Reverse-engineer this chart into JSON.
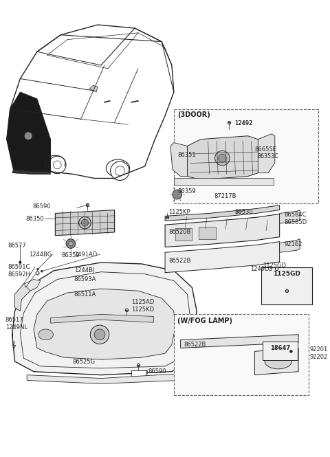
{
  "bg_color": "#ffffff",
  "line_color": "#222222",
  "text_color": "#222222",
  "figsize": [
    4.8,
    6.65
  ],
  "dpi": 100,
  "label_3door": "(3DOOR)",
  "label_wfog": "(W/FOG LAMP)",
  "label_1125gd": "1125GD"
}
